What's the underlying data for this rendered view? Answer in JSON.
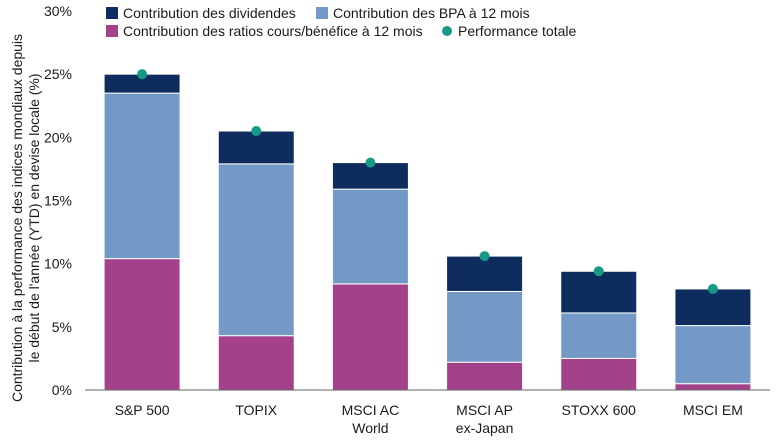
{
  "chart_data": {
    "type": "bar",
    "stacked": true,
    "title": "",
    "ylabel_lines": [
      "Contribution à la performance des indices mondiaux depuis",
      "le début de l'année (YTD) en devise locale (%)"
    ],
    "xlabel": "",
    "ylim": [
      0,
      30
    ],
    "ytick_values": [
      0,
      5,
      10,
      15,
      20,
      25,
      30
    ],
    "ytick_labels": [
      "0%",
      "5%",
      "10%",
      "15%",
      "20%",
      "25%",
      "30%"
    ],
    "categories": [
      {
        "lines": [
          "S&P 500"
        ]
      },
      {
        "lines": [
          "TOPIX"
        ]
      },
      {
        "lines": [
          "MSCI AC",
          "World"
        ]
      },
      {
        "lines": [
          "MSCI AP",
          "ex-Japan"
        ]
      },
      {
        "lines": [
          "STOXX 600"
        ]
      },
      {
        "lines": [
          "MSCI EM"
        ]
      }
    ],
    "series": [
      {
        "name": "Contribution des ratios cours/bénéfice à 12 mois",
        "color": "#a3418a",
        "values": [
          10.4,
          4.3,
          8.4,
          2.2,
          2.5,
          0.5
        ]
      },
      {
        "name": "Contribution des BPA à 12 mois",
        "color": "#7499c6",
        "values": [
          13.1,
          13.6,
          7.5,
          5.6,
          3.6,
          4.6
        ]
      },
      {
        "name": "Contribution des dividendes",
        "color": "#0f2c5e",
        "values": [
          1.5,
          2.6,
          2.1,
          2.8,
          3.3,
          2.9
        ]
      }
    ],
    "total": {
      "name": "Performance totale",
      "color": "#169a86",
      "values": [
        25.0,
        20.5,
        18.0,
        10.6,
        9.4,
        8.0
      ]
    },
    "legend": {
      "position": "top",
      "entries": [
        {
          "name": "Contribution des dividendes",
          "color": "#0f2c5e",
          "marker": "square"
        },
        {
          "name": "Contribution des BPA à 12 mois",
          "color": "#7499c6",
          "marker": "square"
        },
        {
          "name": "Contribution des ratios cours/bénéfice à 12 mois",
          "color": "#a3418a",
          "marker": "square"
        },
        {
          "name": "Performance totale",
          "color": "#169a86",
          "marker": "circle"
        }
      ]
    }
  }
}
